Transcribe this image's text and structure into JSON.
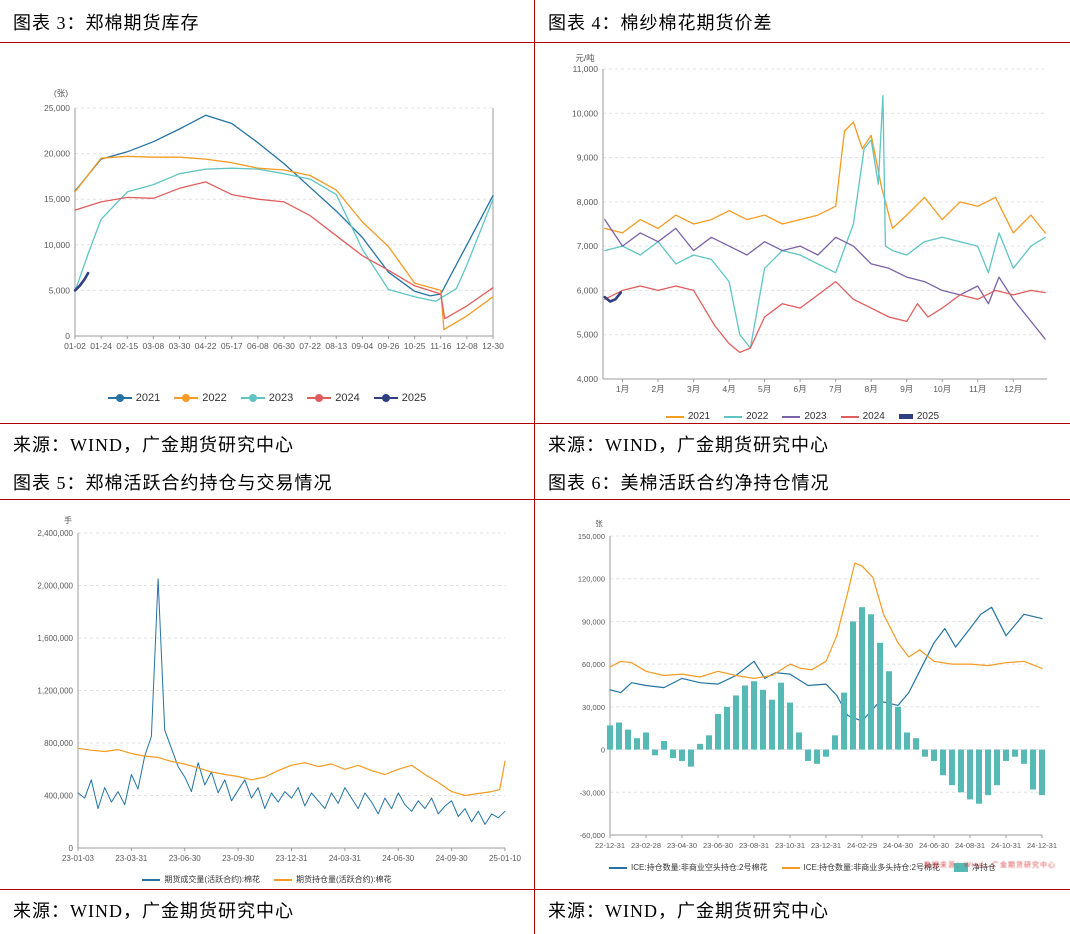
{
  "page": {
    "background": "#ffffff",
    "accent_rule_color": "#b00000",
    "watermark_text": "数据来源：Wind，广金期货研究中心"
  },
  "figures": [
    {
      "title": "图表 3：郑棉期货库存",
      "source": "来源：WIND，广金期货研究中心"
    },
    {
      "title": "图表 4：棉纱棉花期货价差",
      "source": "来源：WIND，广金期货研究中心"
    },
    {
      "title": "图表 5：郑棉活跃合约持仓与交易情况",
      "source": "来源：WIND，广金期货研究中心"
    },
    {
      "title": "图表 6：美棉活跃合约净持仓情况",
      "source": "来源：WIND，广金期货研究中心"
    }
  ],
  "chart_data": [
    {
      "type": "line",
      "title": "郑棉期货库存",
      "unit": "(张)",
      "ylim": [
        0,
        25000
      ],
      "ystep": 5000,
      "xlim": [
        0,
        16
      ],
      "right_axis": true,
      "grid": true,
      "legend_position": "bottom",
      "xtick_values": [
        0,
        1,
        2,
        3,
        4,
        5,
        6,
        7,
        8,
        9,
        10,
        11,
        12,
        13,
        14,
        15,
        16
      ],
      "xtick_labels": [
        "01-02",
        "01-24",
        "02-15",
        "03-08",
        "03-30",
        "04-22",
        "05-17",
        "06-08",
        "06-30",
        "07-22",
        "08-13",
        "09-04",
        "09-26",
        "10-25",
        "11-16",
        "12-08",
        "12-30"
      ],
      "series": [
        {
          "name": "2021",
          "color": "#2473a3",
          "marker": "dotline",
          "x": [
            0,
            1,
            2,
            3,
            4,
            5,
            6,
            7,
            8,
            9,
            10,
            11,
            12,
            13,
            13.6,
            14,
            15,
            16
          ],
          "y": [
            15900,
            19400,
            20200,
            21300,
            22700,
            24200,
            23300,
            21200,
            18900,
            16300,
            13700,
            10800,
            7000,
            4900,
            4400,
            4600,
            10000,
            15400
          ]
        },
        {
          "name": "2022",
          "color": "#f59a23",
          "marker": "dotline",
          "x": [
            0,
            1,
            2,
            3,
            4,
            5,
            6,
            7,
            8,
            9,
            10,
            11,
            12,
            13,
            14,
            14.12,
            15,
            16
          ],
          "y": [
            15800,
            19500,
            19700,
            19600,
            19600,
            19400,
            19000,
            18400,
            18200,
            17600,
            16000,
            12500,
            9800,
            5800,
            5000,
            700,
            2200,
            4300
          ]
        },
        {
          "name": "2023",
          "color": "#5fc4c4",
          "marker": "dotline",
          "x": [
            0,
            0.5,
            1,
            2,
            3,
            4,
            5,
            6,
            7,
            8,
            9,
            10,
            11,
            12,
            13,
            13.8,
            14.6,
            15,
            16
          ],
          "y": [
            4900,
            9000,
            12800,
            15800,
            16600,
            17800,
            18300,
            18400,
            18300,
            17800,
            17200,
            15500,
            9500,
            5100,
            4300,
            3800,
            5200,
            7800,
            15000
          ]
        },
        {
          "name": "2024",
          "color": "#e15d5d",
          "marker": "dotline",
          "x": [
            0,
            1,
            2,
            3,
            4,
            5,
            6,
            7,
            8,
            9,
            10,
            11,
            12,
            13,
            14,
            14.15,
            15,
            16
          ],
          "y": [
            13800,
            14700,
            15200,
            15100,
            16200,
            16900,
            15500,
            15000,
            14700,
            13200,
            11000,
            8800,
            7200,
            5500,
            4600,
            1900,
            3300,
            5300
          ]
        },
        {
          "name": "2025",
          "color": "#2f3f7f",
          "marker": "dotline",
          "width": 2.6,
          "x": [
            0,
            0.18,
            0.36,
            0.5
          ],
          "y": [
            5000,
            5500,
            6200,
            6900
          ]
        }
      ]
    },
    {
      "type": "line",
      "title": "棉纱棉花期货价差",
      "unit": "元/吨",
      "ylim": [
        4000,
        11000
      ],
      "ystep": 1000,
      "xlim": [
        0.45,
        12.95
      ],
      "right_axis": false,
      "grid": true,
      "legend_position": "bottom",
      "xtick_values": [
        1,
        2,
        3,
        4,
        5,
        6,
        7,
        8,
        9,
        10,
        11,
        12
      ],
      "xtick_labels": [
        "1月",
        "2月",
        "3月",
        "4月",
        "5月",
        "6月",
        "7月",
        "8月",
        "9月",
        "10月",
        "11月",
        "12月"
      ],
      "series": [
        {
          "name": "2021",
          "color": "#f59a23",
          "marker": "line",
          "x": [
            0.5,
            1,
            1.5,
            2,
            2.5,
            3,
            3.5,
            4,
            4.5,
            5,
            5.5,
            6,
            6.5,
            7,
            7.25,
            7.5,
            7.75,
            8,
            8.3,
            8.6,
            9,
            9.5,
            10,
            10.5,
            11,
            11.5,
            12,
            12.5,
            12.9
          ],
          "y": [
            7400,
            7300,
            7600,
            7400,
            7700,
            7500,
            7600,
            7800,
            7600,
            7700,
            7500,
            7600,
            7700,
            7900,
            9600,
            9800,
            9200,
            9500,
            8300,
            7400,
            7700,
            8100,
            7600,
            8000,
            7900,
            8100,
            7300,
            7700,
            7300
          ]
        },
        {
          "name": "2022",
          "color": "#5fc4c4",
          "marker": "line",
          "x": [
            0.5,
            1,
            1.5,
            2,
            2.5,
            3,
            3.5,
            4,
            4.3,
            4.6,
            5,
            5.5,
            6,
            6.5,
            7,
            7.5,
            7.8,
            8,
            8.2,
            8.33,
            8.4,
            8.6,
            9,
            9.5,
            10,
            10.5,
            11,
            11.3,
            11.6,
            12,
            12.5,
            12.9
          ],
          "y": [
            6900,
            7000,
            6800,
            7100,
            6600,
            6800,
            6700,
            6200,
            5000,
            4700,
            6500,
            6900,
            6800,
            6600,
            6400,
            7500,
            9200,
            9400,
            8400,
            10400,
            7000,
            6900,
            6800,
            7100,
            7200,
            7100,
            7000,
            6400,
            7300,
            6500,
            7000,
            7200
          ]
        },
        {
          "name": "2023",
          "color": "#7a62a8",
          "marker": "line",
          "x": [
            0.5,
            1,
            1.5,
            2,
            2.5,
            3,
            3.5,
            4,
            4.5,
            5,
            5.5,
            6,
            6.5,
            7,
            7.5,
            8,
            8.5,
            9,
            9.5,
            10,
            10.5,
            11,
            11.3,
            11.6,
            12,
            12.4,
            12.9
          ],
          "y": [
            7600,
            7000,
            7300,
            7100,
            7400,
            6900,
            7200,
            7000,
            6800,
            7100,
            6900,
            7000,
            6800,
            7200,
            7000,
            6600,
            6500,
            6300,
            6200,
            6000,
            5900,
            6100,
            5700,
            6300,
            5800,
            5400,
            4900
          ]
        },
        {
          "name": "2024",
          "color": "#e15d5d",
          "marker": "line",
          "x": [
            0.5,
            1,
            1.5,
            2,
            2.5,
            3,
            3.3,
            3.6,
            4,
            4.3,
            4.6,
            5,
            5.5,
            6,
            6.5,
            7,
            7.5,
            8,
            8.5,
            9,
            9.3,
            9.6,
            10,
            10.5,
            11,
            11.5,
            12,
            12.5,
            12.9
          ],
          "y": [
            5800,
            6000,
            6100,
            6000,
            6100,
            6000,
            5600,
            5200,
            4800,
            4600,
            4700,
            5400,
            5700,
            5600,
            5900,
            6200,
            5800,
            5600,
            5400,
            5300,
            5700,
            5400,
            5600,
            5900,
            5800,
            6000,
            5900,
            6000,
            5950
          ]
        },
        {
          "name": "2025",
          "color": "#2f3f7f",
          "marker": "thickline",
          "width": 2.6,
          "x": [
            0.5,
            0.65,
            0.8,
            0.95
          ],
          "y": [
            5850,
            5750,
            5800,
            5950
          ]
        }
      ]
    },
    {
      "type": "line",
      "title": "郑棉活跃合约持仓与交易情况",
      "unit": "手",
      "ylim": [
        0,
        2400000
      ],
      "ystep": 400000,
      "xlim": [
        0,
        8
      ],
      "right_axis": false,
      "grid": true,
      "legend_position": "bottom",
      "xtick_values": [
        0,
        1,
        2,
        3,
        4,
        5,
        6,
        7,
        8
      ],
      "xtick_labels": [
        "23-01-03",
        "23-03-31",
        "23-06-30",
        "23-09-30",
        "23-12-31",
        "24-03-31",
        "24-06-30",
        "24-09-30",
        "25-01-10"
      ],
      "series": [
        {
          "name": "期货成交量(活跃合约):棉花",
          "color": "#2473a3",
          "marker": "line",
          "width": 1,
          "xstart": 0,
          "xstep": 0.125,
          "y": [
            420000,
            380000,
            520000,
            300000,
            460000,
            350000,
            430000,
            330000,
            560000,
            450000,
            700000,
            850000,
            2050000,
            900000,
            760000,
            620000,
            540000,
            430000,
            650000,
            480000,
            580000,
            420000,
            520000,
            360000,
            440000,
            520000,
            380000,
            460000,
            300000,
            420000,
            350000,
            430000,
            380000,
            460000,
            320000,
            420000,
            360000,
            300000,
            420000,
            340000,
            460000,
            380000,
            300000,
            420000,
            350000,
            260000,
            380000,
            300000,
            420000,
            330000,
            280000,
            360000,
            300000,
            380000,
            260000,
            320000,
            360000,
            240000,
            300000,
            200000,
            280000,
            180000,
            260000,
            230000,
            280000
          ]
        },
        {
          "name": "期货持仓量(活跃合约):棉花",
          "color": "#f59a23",
          "marker": "line",
          "width": 1.2,
          "x": [
            0,
            0.25,
            0.5,
            0.75,
            1,
            1.25,
            1.5,
            1.75,
            2,
            2.25,
            2.5,
            2.75,
            3,
            3.25,
            3.5,
            3.75,
            4,
            4.25,
            4.5,
            4.75,
            5,
            5.25,
            5.5,
            5.75,
            6,
            6.25,
            6.5,
            6.75,
            7,
            7.25,
            7.5,
            7.75,
            7.9,
            8
          ],
          "y": [
            760000,
            745000,
            735000,
            750000,
            720000,
            700000,
            690000,
            660000,
            640000,
            610000,
            580000,
            560000,
            545000,
            520000,
            540000,
            590000,
            630000,
            650000,
            620000,
            640000,
            600000,
            630000,
            590000,
            560000,
            600000,
            630000,
            560000,
            500000,
            430000,
            400000,
            415000,
            430000,
            445000,
            660000
          ]
        }
      ]
    },
    {
      "type": "line+bar",
      "title": "美棉活跃合约净持仓情况",
      "unit": "张",
      "ylim": [
        -60000,
        150000
      ],
      "ystep": 30000,
      "xlim": [
        0,
        12
      ],
      "right_axis": false,
      "grid": true,
      "legend_position": "bottom",
      "xtick_values": [
        0,
        1,
        2,
        3,
        4,
        5,
        6,
        7,
        8,
        9,
        10,
        11,
        12
      ],
      "xtick_labels": [
        "22-12-31",
        "23-02-28",
        "23-04-30",
        "23-06-30",
        "23-08-31",
        "23-10-31",
        "23-12-31",
        "24-02-29",
        "24-04-30",
        "24-06-30",
        "24-08-31",
        "24-10-31",
        "24-12-31"
      ],
      "series": [
        {
          "name": "ICE:持仓数量:非商业空头持仓:2号棉花",
          "color": "#2473a3",
          "marker": "line",
          "width": 1.2,
          "x": [
            0,
            0.3,
            0.6,
            1,
            1.5,
            2,
            2.5,
            3,
            3.5,
            4,
            4.3,
            4.6,
            5,
            5.5,
            6,
            6.3,
            6.6,
            7,
            7.5,
            8,
            8.3,
            8.6,
            9,
            9.3,
            9.6,
            10,
            10.3,
            10.6,
            11,
            11.5,
            12
          ],
          "y": [
            42000,
            40000,
            47000,
            45000,
            43500,
            50000,
            47000,
            46000,
            52000,
            62000,
            50000,
            54000,
            53000,
            45000,
            46000,
            38000,
            24000,
            20000,
            34000,
            31000,
            40000,
            55000,
            75000,
            85000,
            72000,
            85000,
            95000,
            100000,
            80000,
            95000,
            92000
          ]
        },
        {
          "name": "ICE:持仓数量:非商业多头持仓:2号棉花",
          "color": "#f59a23",
          "marker": "line",
          "width": 1.2,
          "x": [
            0,
            0.3,
            0.6,
            1,
            1.5,
            2,
            2.5,
            3,
            3.5,
            4,
            4.5,
            5,
            5.3,
            5.6,
            6,
            6.3,
            6.6,
            6.8,
            7,
            7.3,
            7.6,
            8,
            8.3,
            8.6,
            9,
            9.5,
            10,
            10.5,
            11,
            11.5,
            12
          ],
          "y": [
            58000,
            62000,
            61000,
            55000,
            52000,
            53000,
            51000,
            55000,
            52000,
            50000,
            52000,
            60000,
            57000,
            56000,
            62000,
            80000,
            110000,
            131000,
            129000,
            121000,
            95000,
            75000,
            65000,
            70000,
            62000,
            60000,
            60000,
            59000,
            61000,
            62000,
            57000
          ]
        },
        {
          "name": "净持仓",
          "color": "#56b9b5",
          "marker": "swatch",
          "kind": "bar",
          "xstart": 0,
          "xstep": 0.25,
          "y": [
            17000,
            19000,
            14000,
            8000,
            12000,
            -4000,
            6000,
            -6000,
            -8000,
            -12000,
            4000,
            10000,
            25000,
            30000,
            38000,
            45000,
            48000,
            42000,
            35000,
            47000,
            33000,
            12000,
            -8000,
            -10000,
            -5000,
            10000,
            40000,
            90000,
            100000,
            95000,
            75000,
            55000,
            30000,
            12000,
            8000,
            -5000,
            -8000,
            -18000,
            -25000,
            -30000,
            -35000,
            -38000,
            -32000,
            -25000,
            -8000,
            -5000,
            -10000,
            -28000,
            -32000
          ]
        }
      ]
    }
  ]
}
